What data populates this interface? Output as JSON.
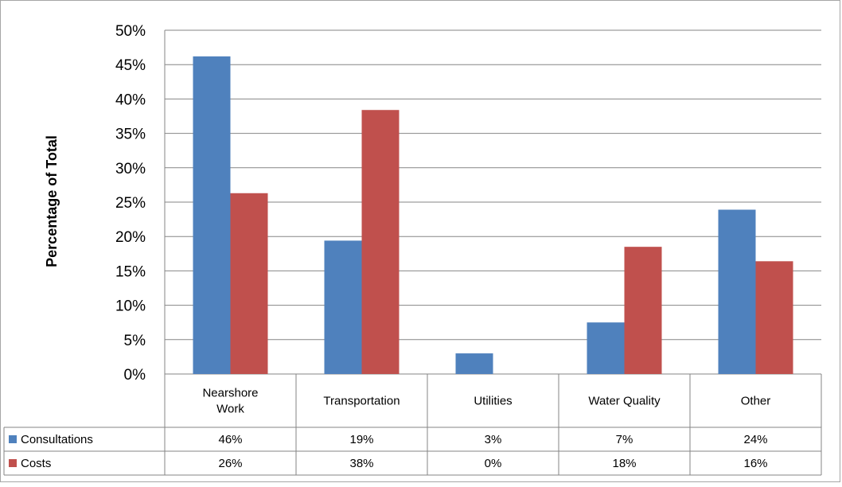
{
  "chart_data": {
    "type": "bar",
    "title": "",
    "xlabel": "",
    "ylabel": "Percentage of Total",
    "ylim": [
      0,
      0.5
    ],
    "yticks": [
      "0%",
      "5%",
      "10%",
      "15%",
      "20%",
      "25%",
      "30%",
      "35%",
      "40%",
      "45%",
      "50%"
    ],
    "categories": [
      [
        "Nearshore",
        "Work"
      ],
      [
        "Transportation"
      ],
      [
        "Utilities"
      ],
      [
        "Water Quality"
      ],
      [
        "Other"
      ]
    ],
    "series": [
      {
        "name": "Consultations",
        "color": "#4f81bd",
        "values": [
          0.462,
          0.194,
          0.03,
          0.075,
          0.239
        ],
        "labels": [
          "46%",
          "19%",
          "3%",
          "7%",
          "24%"
        ]
      },
      {
        "name": "Costs",
        "color": "#c0504d",
        "values": [
          0.263,
          0.384,
          0.0,
          0.185,
          0.164
        ],
        "labels": [
          "26%",
          "38%",
          "0%",
          "18%",
          "16%"
        ]
      }
    ],
    "grid": true,
    "legend": "data-table"
  }
}
